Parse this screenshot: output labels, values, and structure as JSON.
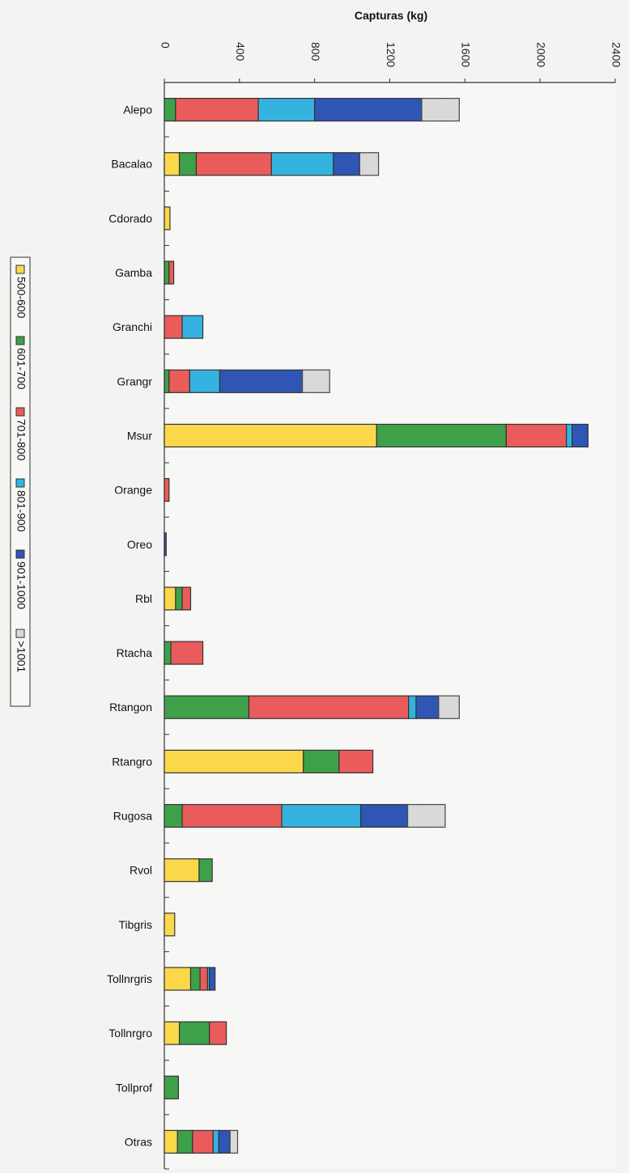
{
  "chart_data": {
    "type": "bar",
    "orientation": "horizontal",
    "stacked": true,
    "title": "",
    "xlabel": "Capturas (kg)",
    "ylabel": "",
    "xlim": [
      0,
      2400
    ],
    "x_ticks": [
      0,
      400,
      800,
      1200,
      1600,
      2000,
      2400
    ],
    "x_tick_labels": [
      "0",
      "400",
      "800",
      "1200",
      "1600",
      "2000",
      "2400"
    ],
    "grid": false,
    "legend_position": "left",
    "categories": [
      "Alepo",
      "Bacalao",
      "Cdorado",
      "Gamba",
      "Granchi",
      "Grangr",
      "Msur",
      "Orange",
      "Oreo",
      "Rbl",
      "Rtacha",
      "Rtangon",
      "Rtangro",
      "Rugosa",
      "Rvol",
      "Tibgris",
      "Tollnrgris",
      "Tollnrgro",
      "Tollprof",
      "Otras"
    ],
    "series": [
      {
        "name": "500-600",
        "color": "#fbd84a",
        "values": [
          0,
          80,
          30,
          0,
          0,
          0,
          1130,
          0,
          0,
          60,
          0,
          0,
          740,
          0,
          185,
          55,
          140,
          80,
          0,
          70
        ]
      },
      {
        "name": "601-700",
        "color": "#3fa04a",
        "values": [
          60,
          90,
          0,
          25,
          0,
          25,
          690,
          0,
          0,
          35,
          35,
          450,
          190,
          95,
          70,
          0,
          50,
          160,
          75,
          80
        ]
      },
      {
        "name": "701-800",
        "color": "#ea5b5b",
        "values": [
          440,
          400,
          0,
          25,
          95,
          110,
          320,
          25,
          0,
          45,
          170,
          850,
          180,
          530,
          0,
          0,
          40,
          90,
          0,
          110
        ]
      },
      {
        "name": "801-900",
        "color": "#35b3e0",
        "values": [
          300,
          330,
          0,
          0,
          110,
          160,
          30,
          0,
          0,
          0,
          0,
          40,
          0,
          420,
          0,
          0,
          10,
          0,
          0,
          30
        ]
      },
      {
        "name": "901-1000",
        "color": "#2f56b4",
        "values": [
          570,
          140,
          0,
          0,
          0,
          440,
          85,
          0,
          10,
          0,
          0,
          120,
          0,
          250,
          0,
          0,
          30,
          0,
          0,
          60
        ]
      },
      {
        "name": ">1001",
        "color": "#d9d9d9",
        "values": [
          200,
          100,
          0,
          0,
          0,
          145,
          0,
          0,
          0,
          0,
          0,
          110,
          0,
          200,
          0,
          0,
          0,
          0,
          0,
          40
        ]
      }
    ]
  }
}
